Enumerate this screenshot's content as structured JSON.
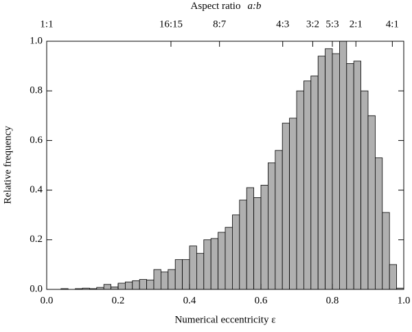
{
  "chart_data": {
    "type": "histogram",
    "xlabel": "Numerical eccentricity  ε",
    "ylabel": "Relative frequency",
    "top_axis_label": "Aspect ratio",
    "top_axis_variable": "a:b",
    "bins": [
      0,
      0.02,
      0.04,
      0.06,
      0.08,
      0.1,
      0.12,
      0.14,
      0.16,
      0.18,
      0.2,
      0.22,
      0.24,
      0.26,
      0.28,
      0.3,
      0.32,
      0.34,
      0.36,
      0.38,
      0.4,
      0.42,
      0.44,
      0.46,
      0.48,
      0.5,
      0.52,
      0.54,
      0.56,
      0.58,
      0.6,
      0.62,
      0.64,
      0.66,
      0.68,
      0.7,
      0.72,
      0.74,
      0.76,
      0.78,
      0.8,
      0.82,
      0.84,
      0.86,
      0.88,
      0.9,
      0.92,
      0.94,
      0.96,
      0.98,
      1.0
    ],
    "values": [
      0,
      0,
      0.003,
      0,
      0.003,
      0.005,
      0.003,
      0.008,
      0.02,
      0.01,
      0.025,
      0.03,
      0.035,
      0.04,
      0.038,
      0.08,
      0.07,
      0.08,
      0.12,
      0.12,
      0.175,
      0.145,
      0.2,
      0.205,
      0.23,
      0.25,
      0.3,
      0.36,
      0.41,
      0.37,
      0.42,
      0.51,
      0.56,
      0.67,
      0.69,
      0.8,
      0.84,
      0.86,
      0.94,
      0.97,
      0.95,
      1.0,
      0.91,
      0.92,
      0.8,
      0.7,
      0.53,
      0.31,
      0.1,
      0.005
    ],
    "color": "#b0b0b0",
    "xlim": [
      0,
      1
    ],
    "ylim": [
      0,
      1
    ],
    "xticks": [
      {
        "value": 0,
        "label": "0.0"
      },
      0.2,
      0.4,
      0.6,
      0.8,
      {
        "value": 1,
        "label": "1.0"
      }
    ],
    "yticks": [
      {
        "value": 0,
        "label": "0.0"
      },
      0.2,
      0.4,
      0.6,
      0.8,
      {
        "value": 1,
        "label": "1.0"
      }
    ],
    "x2ticks": [
      {
        "value": 0,
        "label": "1:1"
      },
      {
        "value": 0.348,
        "label": "16:15"
      },
      {
        "value": 0.484,
        "label": "8:7"
      },
      {
        "value": 0.661,
        "label": "4:3"
      },
      {
        "value": 0.745,
        "label": "3:2"
      },
      {
        "value": 0.8,
        "label": "5:3"
      },
      {
        "value": 0.866,
        "label": "2:1"
      },
      {
        "value": 0.968,
        "label": "4:1"
      }
    ]
  }
}
